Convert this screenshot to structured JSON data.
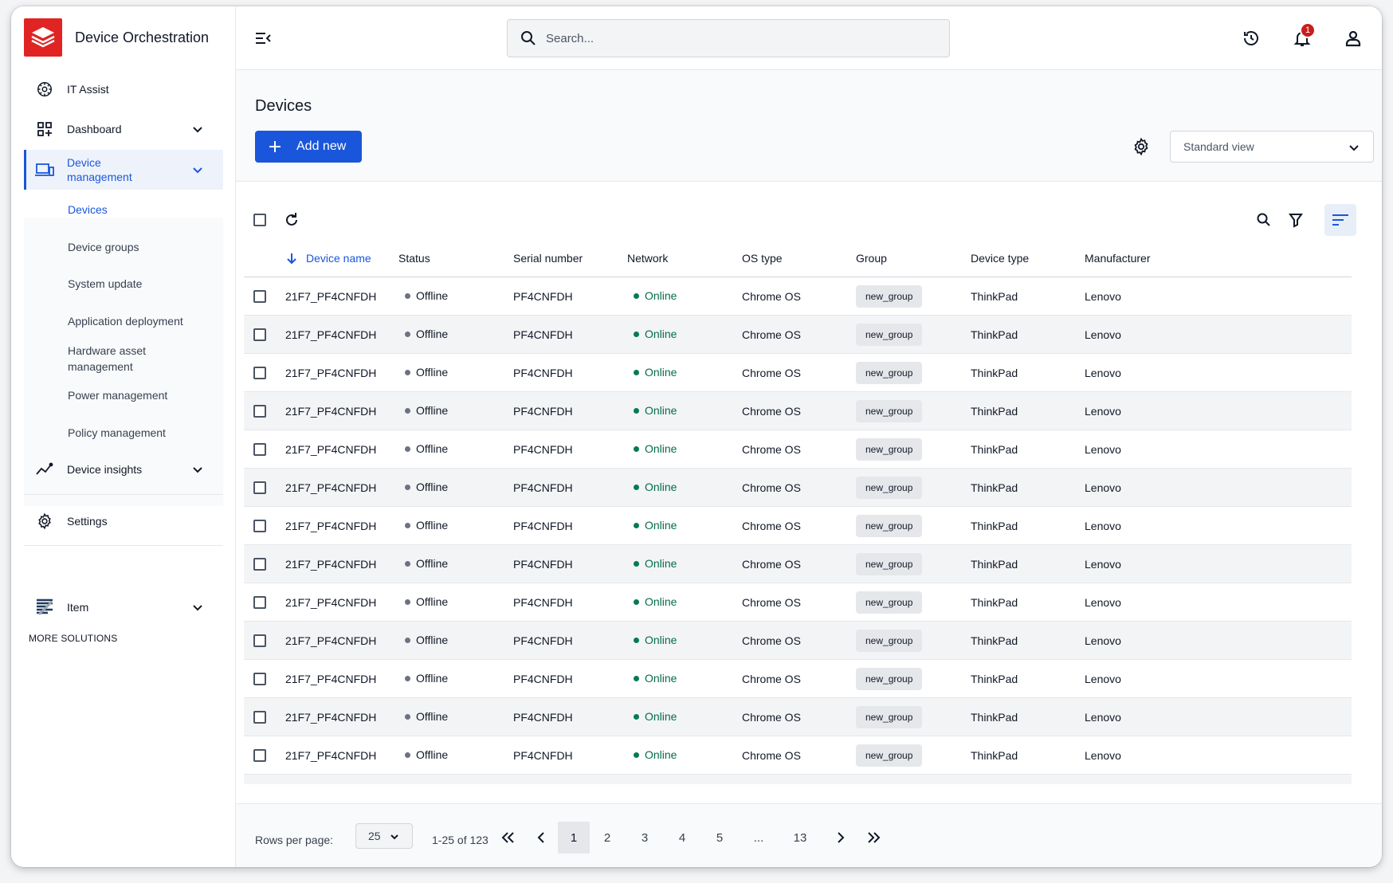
{
  "app": {
    "title": "Device Orchestration"
  },
  "colors": {
    "accent": "#1a56db",
    "brand": "#e02424",
    "online": "#046c4e",
    "badge": "#c81e1e"
  },
  "sidebar": {
    "items": [
      {
        "label": "IT Assist",
        "icon": "atom-icon"
      },
      {
        "label": "Dashboard",
        "icon": "dashboard-icon"
      },
      {
        "label": "Device management",
        "icon": "devices-icon"
      },
      {
        "label": "Device insights",
        "icon": "insights-icon"
      },
      {
        "label": "Settings",
        "icon": "gear-icon"
      }
    ],
    "device_management_sub": [
      "Devices",
      "Device groups",
      "System update",
      "Application deployment",
      "Hardware asset management",
      "Power management",
      "Policy management"
    ],
    "more_solutions_label": "MORE SOLUTIONS",
    "more_item_label": "Item"
  },
  "topbar": {
    "search_placeholder": "Search...",
    "notification_count": "1"
  },
  "page": {
    "title": "Devices",
    "add_new_label": "Add new",
    "view_select_value": "Standard view"
  },
  "table": {
    "columns": [
      "Device name",
      "Status",
      "Serial number",
      "Network",
      "OS type",
      "Group",
      "Device type",
      "Manufacturer"
    ],
    "sorted_column": "Device name",
    "rows": [
      [
        "21F7_PF4CNFDH",
        "Offline",
        "PF4CNFDH",
        "Online",
        "Chrome OS",
        "new_group",
        "ThinkPad",
        "Lenovo"
      ],
      [
        "21F7_PF4CNFDH",
        "Offline",
        "PF4CNFDH",
        "Online",
        "Chrome OS",
        "new_group",
        "ThinkPad",
        "Lenovo"
      ],
      [
        "21F7_PF4CNFDH",
        "Offline",
        "PF4CNFDH",
        "Online",
        "Chrome OS",
        "new_group",
        "ThinkPad",
        "Lenovo"
      ],
      [
        "21F7_PF4CNFDH",
        "Offline",
        "PF4CNFDH",
        "Online",
        "Chrome OS",
        "new_group",
        "ThinkPad",
        "Lenovo"
      ],
      [
        "21F7_PF4CNFDH",
        "Offline",
        "PF4CNFDH",
        "Online",
        "Chrome OS",
        "new_group",
        "ThinkPad",
        "Lenovo"
      ],
      [
        "21F7_PF4CNFDH",
        "Offline",
        "PF4CNFDH",
        "Online",
        "Chrome OS",
        "new_group",
        "ThinkPad",
        "Lenovo"
      ],
      [
        "21F7_PF4CNFDH",
        "Offline",
        "PF4CNFDH",
        "Online",
        "Chrome OS",
        "new_group",
        "ThinkPad",
        "Lenovo"
      ],
      [
        "21F7_PF4CNFDH",
        "Offline",
        "PF4CNFDH",
        "Online",
        "Chrome OS",
        "new_group",
        "ThinkPad",
        "Lenovo"
      ],
      [
        "21F7_PF4CNFDH",
        "Offline",
        "PF4CNFDH",
        "Online",
        "Chrome OS",
        "new_group",
        "ThinkPad",
        "Lenovo"
      ],
      [
        "21F7_PF4CNFDH",
        "Offline",
        "PF4CNFDH",
        "Online",
        "Chrome OS",
        "new_group",
        "ThinkPad",
        "Lenovo"
      ],
      [
        "21F7_PF4CNFDH",
        "Offline",
        "PF4CNFDH",
        "Online",
        "Chrome OS",
        "new_group",
        "ThinkPad",
        "Lenovo"
      ],
      [
        "21F7_PF4CNFDH",
        "Offline",
        "PF4CNFDH",
        "Online",
        "Chrome OS",
        "new_group",
        "ThinkPad",
        "Lenovo"
      ],
      [
        "21F7_PF4CNFDH",
        "Offline",
        "PF4CNFDH",
        "Online",
        "Chrome OS",
        "new_group",
        "ThinkPad",
        "Lenovo"
      ]
    ]
  },
  "pagination": {
    "rows_per_page_label": "Rows per page:",
    "rows_per_page_value": "25",
    "range_text": "1-25 of 123",
    "pages": [
      "1",
      "2",
      "3",
      "4",
      "5",
      "...",
      "13"
    ],
    "current_page": "1"
  }
}
